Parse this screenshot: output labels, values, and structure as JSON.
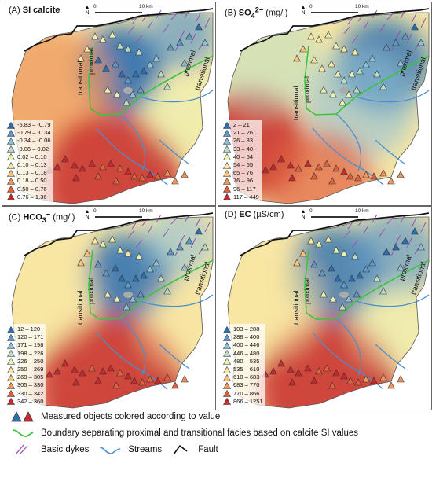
{
  "panels": [
    {
      "id": "A",
      "label": "(A)",
      "param": "SI calcite",
      "param_html": "",
      "unit": "",
      "legend": [
        "-5.83 – -0.79",
        "-0.79 – -0.34",
        "-0.34 – -0.06",
        "-0.06 – 0.02",
        "0.02 – 0.10",
        "0.10 – 0.13",
        "0.13 – 0.18",
        "0.18 – 0.50",
        "0.50 – 0.76",
        "0.76 – 1.36"
      ]
    },
    {
      "id": "B",
      "label": "(B)",
      "param": "SO",
      "param_sub": "4",
      "param_sup": "2−",
      "unit": " (mg/l)",
      "legend": [
        "2 – 21",
        "21 – 26",
        "26 – 33",
        "33 – 40",
        "40 – 54",
        "54 – 65",
        "65 – 76",
        "76 – 96",
        "96 – 117",
        "117 – 449"
      ]
    },
    {
      "id": "C",
      "label": "(C)",
      "param": "HCO",
      "param_sub": "3",
      "param_sup": "−",
      "unit": " (mg/l)",
      "legend": [
        "12 – 120",
        "120 – 171",
        "171 – 198",
        "198 – 226",
        "226 – 250",
        "250 – 269",
        "269 – 305",
        "305 – 330",
        "330 – 342",
        "342 – 360"
      ]
    },
    {
      "id": "D",
      "label": "(D)",
      "param": "EC",
      "param_sub": "",
      "param_sup": "",
      "unit": " (µS/cm)",
      "legend": [
        "103 – 288",
        "288 – 400",
        "400 – 446",
        "446 – 480",
        "480 – 535",
        "535 – 610",
        "610 – 683",
        "683 – 770",
        "770 – 866",
        "866 – 1251"
      ]
    }
  ],
  "class_colors": [
    "#2c6fb0",
    "#5f98c6",
    "#8fbfd6",
    "#b9dcc3",
    "#e9f2b3",
    "#f9e6a0",
    "#f6c27a",
    "#ef965c",
    "#e0603e",
    "#c8282b"
  ],
  "scale": {
    "zero": "0",
    "ten": "10 km"
  },
  "north": "N",
  "facies": {
    "transitional": "transitional",
    "proximal": "proximal"
  },
  "bottom_legend": {
    "measured": "Measured objects colored according to value",
    "boundary": "Boundary separating proximal and transitional facies based on calcite SI values",
    "dykes": "Basic dykes",
    "streams": "Streams",
    "fault": "Fault"
  }
}
